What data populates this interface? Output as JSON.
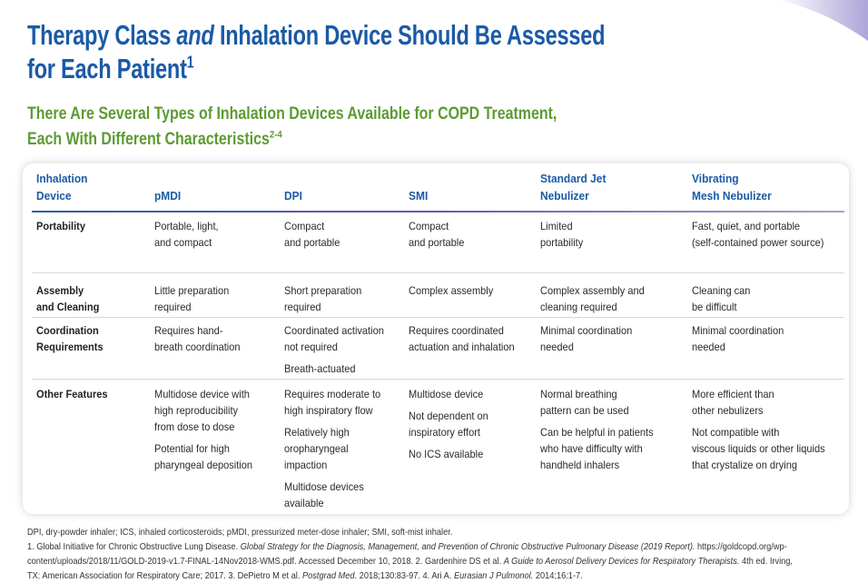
{
  "title": {
    "lines": [
      [
        "Therapy Class ",
        {
          "text": "and",
          "style": "italic"
        },
        " Inhalation Device Should Be Assessed"
      ],
      [
        "for Each Patient",
        {
          "text": "1",
          "style": "sup"
        }
      ]
    ]
  },
  "subtitle": {
    "lines": [
      [
        "There Are Several Types of Inhalation Devices Available for COPD Treatment,"
      ],
      [
        "Each With Different Characteristics",
        {
          "text": "2-4",
          "style": "sup"
        }
      ]
    ]
  },
  "table": {
    "header": [
      [
        "Inhalation",
        "Device"
      ],
      [
        "pMDI"
      ],
      [
        "DPI"
      ],
      [
        "SMI"
      ],
      [
        "Standard Jet",
        "Nebulizer"
      ],
      [
        "Vibrating",
        "Mesh Nebulizer"
      ]
    ],
    "rows": [
      [
        [
          [
            "Portability"
          ]
        ],
        [
          [
            "Portable, light,",
            "and compact"
          ]
        ],
        [
          [
            "Compact",
            "and portable"
          ]
        ],
        [
          [
            "Compact",
            "and portable"
          ]
        ],
        [
          [
            "Limited",
            "portability"
          ]
        ],
        [
          [
            "Fast, quiet, and portable",
            "(self-contained power source)"
          ]
        ]
      ],
      [
        [
          [
            "Assembly",
            "and Cleaning"
          ]
        ],
        [
          [
            "Little preparation",
            "required"
          ]
        ],
        [
          [
            "Short preparation",
            "required"
          ]
        ],
        [
          [
            "Complex assembly"
          ]
        ],
        [
          [
            "Complex assembly and",
            "cleaning required"
          ]
        ],
        [
          [
            "Cleaning can",
            "be difficult"
          ]
        ]
      ],
      [
        [
          [
            "Coordination",
            "Requirements"
          ]
        ],
        [
          [
            "Requires hand-",
            "breath coordination"
          ]
        ],
        [
          [
            "Coordinated activation",
            "not required"
          ],
          [
            "Breath-actuated"
          ]
        ],
        [
          [
            "Requires coordinated",
            "actuation and inhalation"
          ]
        ],
        [
          [
            "Minimal coordination",
            "needed"
          ]
        ],
        [
          [
            "Minimal coordination",
            "needed"
          ]
        ]
      ],
      [
        [
          [
            "Other Features"
          ]
        ],
        [
          [
            "Multidose device with",
            "high reproducibility",
            "from dose to dose"
          ],
          [
            "Potential for high",
            "pharyngeal deposition"
          ]
        ],
        [
          [
            "Requires moderate to",
            "high inspiratory flow"
          ],
          [
            "Relatively high",
            "oropharyngeal",
            "impaction"
          ],
          [
            "Multidose devices",
            "available"
          ]
        ],
        [
          [
            "Multidose device"
          ],
          [
            "Not dependent on",
            "inspiratory effort"
          ],
          [
            "No ICS available"
          ]
        ],
        [
          [
            "Normal breathing",
            "pattern can be used"
          ],
          [
            "Can be helpful in patients",
            "who have difficulty with",
            "handheld inhalers"
          ]
        ],
        [
          [
            "More efficient than",
            "other nebulizers"
          ],
          [
            "Not compatible with",
            "viscous liquids or other liquids",
            "that crystalize on drying"
          ]
        ]
      ]
    ]
  },
  "footnotes": {
    "lines": [
      [
        "DPI, dry-powder inhaler; ICS, inhaled corticosteroids; pMDI, pressurized meter-dose inhaler; SMI, soft-mist inhaler."
      ],
      [
        "1. Global Initiative for Chronic Obstructive Lung Disease. ",
        {
          "text": "Global Strategy for the Diagnosis, Management, and Prevention of Chronic Obstructive Pulmonary Disease (2019 Report).",
          "style": "italic"
        },
        " https://goldcopd.org/wp-"
      ],
      [
        "content/uploads/2018/11/GOLD-2019-v1.7-FINAL-14Nov2018-WMS.pdf.  Accessed December 10, 2018. 2. Gardenhire DS et al. ",
        {
          "text": "A Guide to Aerosol Delivery Devices for Respiratory Therapists.",
          "style": "italic"
        },
        " 4th ed. Irving,"
      ],
      [
        "TX: American Association for Respiratory Care; 2017. 3. DePietro M et al. ",
        {
          "text": "Postgrad Med.",
          "style": "italic"
        },
        " 2018;130:83-97. 4. Ari A. ",
        {
          "text": "Eurasian J Pulmonol.",
          "style": "italic"
        },
        " 2014;16:1-7."
      ]
    ]
  }
}
